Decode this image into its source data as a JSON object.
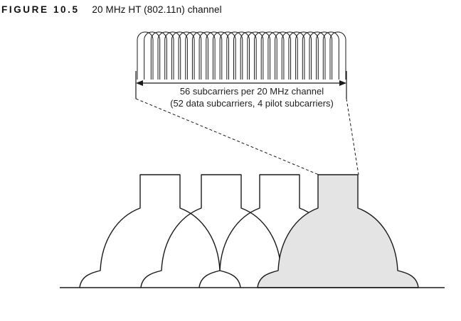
{
  "figure": {
    "label": "FIGURE 10.5",
    "title": "20 MHz HT (802.11n) channel"
  },
  "subcarrier_annotation": {
    "line1": "56 subcarriers per 20 MHz channel",
    "line2": "(52 data subcarriers, 4 pilot subcarriers)"
  },
  "diagram": {
    "subcarrier_count": 29,
    "channel_count": 4,
    "highlighted_channel": 4,
    "colors": {
      "line": "#1a1a1a",
      "highlight_fill": "#e4e4e4",
      "background": "#ffffff"
    }
  }
}
